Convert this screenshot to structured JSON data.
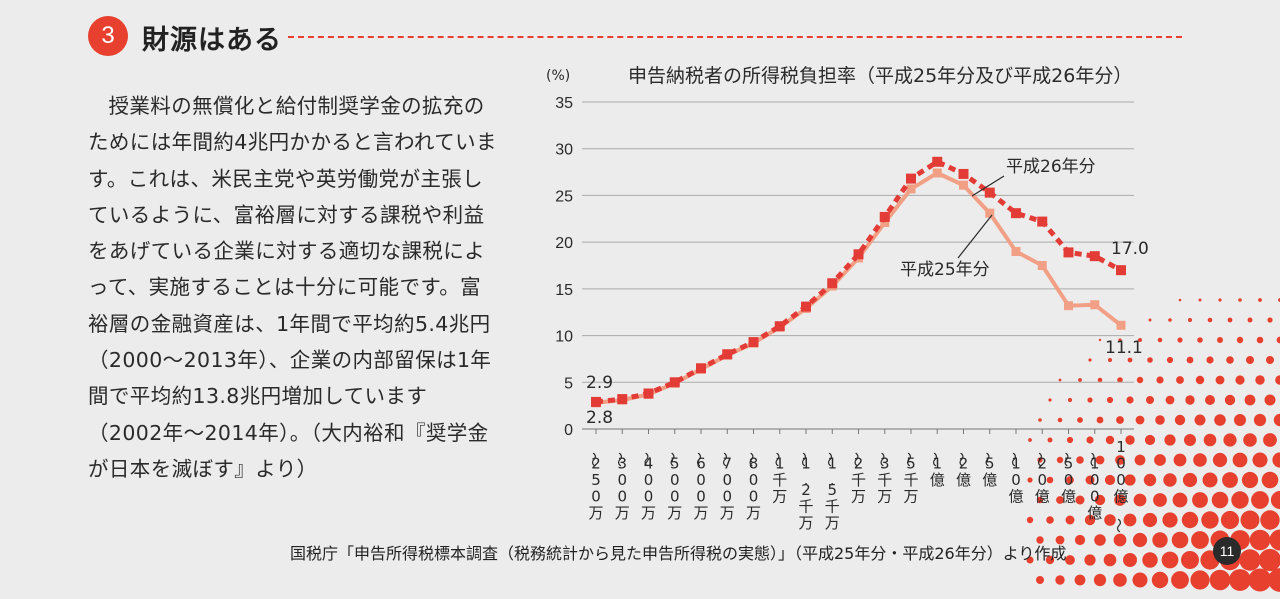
{
  "section": {
    "number": "3",
    "title": "財源はある"
  },
  "body_text": "授業料の無償化と給付制奨学金の拡充のためには年間約4兆円かかると言われています。これは、米民主党や英労働党が主張しているように、富裕層に対する課税や利益をあげている企業に対する適切な課税によって、実施することは十分に可能です。富裕層の金融資産は、1年間で平均約5.4兆円（2000～2013年）、企業の内部留保は1年間で平均約13.8兆円増加しています（2002年～2014年）。（大内裕和『奨学金が日本を滅ぼす』より）",
  "chart_data": {
    "type": "line",
    "title": "申告納税者の所得税負担率（平成25年分及び平成26年分）",
    "ylabel": "(%)",
    "ylim": [
      0,
      35
    ],
    "yticks": [
      0,
      5,
      10,
      15,
      20,
      25,
      30,
      35
    ],
    "grid": true,
    "categories": [
      "～250万",
      "～300万",
      "～400万",
      "～500万",
      "～600万",
      "～700万",
      "～800万",
      "～1千万",
      "～1.2千万",
      "～1.5千万",
      "～2千万",
      "～3千万",
      "～5千万",
      "～1億",
      "～2億",
      "～5億",
      "～10億",
      "～20億",
      "～50億",
      "～100億",
      "100億～"
    ],
    "series": [
      {
        "name": "平成25年分",
        "color": "#f2a085",
        "values": [
          2.8,
          3.1,
          3.7,
          4.9,
          6.4,
          7.9,
          9.2,
          10.9,
          12.9,
          15.3,
          18.3,
          22.1,
          25.7,
          27.4,
          26.1,
          23.1,
          19.0,
          17.5,
          13.2,
          13.3,
          11.1
        ]
      },
      {
        "name": "平成26年分",
        "color": "#e33b36",
        "values": [
          2.9,
          3.2,
          3.8,
          5.0,
          6.5,
          8.0,
          9.3,
          11.0,
          13.1,
          15.6,
          18.7,
          22.7,
          26.8,
          28.6,
          27.3,
          25.3,
          23.1,
          22.2,
          18.9,
          18.5,
          17.0
        ]
      }
    ],
    "annotations": {
      "series26_label": "平成26年分",
      "series25_label": "平成25年分",
      "first_value_26": "2.9",
      "first_value_25": "2.8",
      "last_value_26": "17.0",
      "last_value_25": "11.1"
    }
  },
  "source": "国税庁「申告所得税標本調査（税務統計から見た申告所得税の実態）」（平成25年分・平成26年分）より作成",
  "page_number": "11"
}
